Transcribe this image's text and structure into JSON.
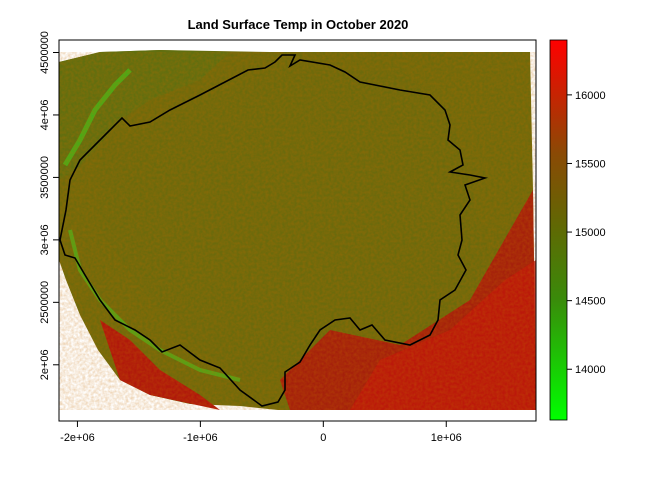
{
  "chart_data": {
    "type": "heatmap",
    "title": "Land Surface Temp in October 2020",
    "xlabel": "",
    "ylabel": "",
    "x_ticks": [
      {
        "value": -2000000,
        "label": "-2e+06"
      },
      {
        "value": -1000000,
        "label": "-1e+06"
      },
      {
        "value": 0,
        "label": "0"
      },
      {
        "value": 1000000,
        "label": "1e+06"
      }
    ],
    "y_ticks": [
      {
        "value": 2000000,
        "label": "2e+06"
      },
      {
        "value": 2500000,
        "label": "2500000"
      },
      {
        "value": 3000000,
        "label": "3e+06"
      },
      {
        "value": 3500000,
        "label": "3500000"
      },
      {
        "value": 4000000,
        "label": "4e+06"
      },
      {
        "value": 4500000,
        "label": "4500000"
      }
    ],
    "xlim": [
      -2150000,
      1730000
    ],
    "ylim": [
      1550000,
      4600000
    ],
    "legend": {
      "position": "right",
      "range": [
        13630,
        16400
      ],
      "ticks": [
        {
          "value": 14000,
          "label": "14000"
        },
        {
          "value": 14500,
          "label": "14500"
        },
        {
          "value": 15000,
          "label": "15000"
        },
        {
          "value": 15500,
          "label": "15500"
        },
        {
          "value": 16000,
          "label": "16000"
        }
      ],
      "color_low": "#00ff00",
      "color_high": "#ff0000"
    }
  }
}
